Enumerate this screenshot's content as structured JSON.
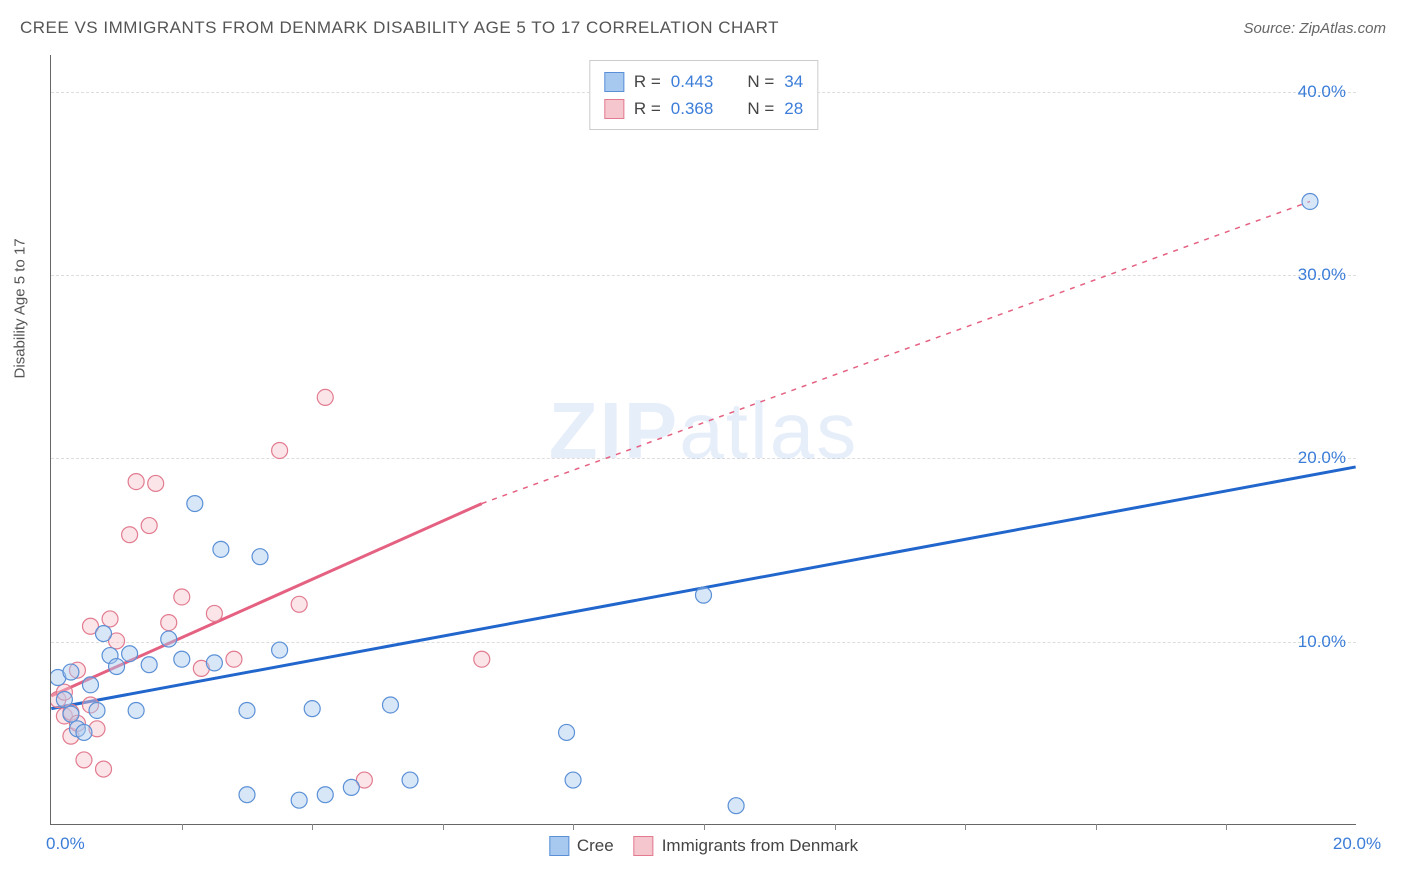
{
  "title": "CREE VS IMMIGRANTS FROM DENMARK DISABILITY AGE 5 TO 17 CORRELATION CHART",
  "source_label": "Source: ZipAtlas.com",
  "y_axis_title": "Disability Age 5 to 17",
  "watermark": {
    "bold": "ZIP",
    "light": "atlas"
  },
  "chart": {
    "type": "scatter",
    "xlim": [
      0,
      20
    ],
    "ylim": [
      0,
      42
    ],
    "x_ticks": [
      0,
      20
    ],
    "y_ticks": [
      10,
      20,
      30,
      40
    ],
    "x_minor_ticks": [
      2,
      4,
      6,
      8,
      10,
      12,
      14,
      16,
      18
    ],
    "grid_color": "#dddddd",
    "background_color": "#ffffff",
    "axis_color": "#666666",
    "tick_label_color": "#3b7dd8",
    "marker_radius": 8,
    "marker_opacity": 0.45,
    "series": [
      {
        "name": "Cree",
        "fill_color": "#a8c9ef",
        "stroke_color": "#5b90d6",
        "line_color": "#2166cc",
        "r": "0.443",
        "n": "34",
        "points": [
          [
            0.1,
            8.0
          ],
          [
            0.2,
            6.8
          ],
          [
            0.3,
            6.0
          ],
          [
            0.3,
            8.3
          ],
          [
            0.4,
            5.2
          ],
          [
            0.5,
            5.0
          ],
          [
            0.6,
            7.6
          ],
          [
            0.7,
            6.2
          ],
          [
            0.8,
            10.4
          ],
          [
            0.9,
            9.2
          ],
          [
            1.0,
            8.6
          ],
          [
            1.2,
            9.3
          ],
          [
            1.3,
            6.2
          ],
          [
            1.5,
            8.7
          ],
          [
            1.8,
            10.1
          ],
          [
            2.0,
            9.0
          ],
          [
            2.2,
            17.5
          ],
          [
            2.5,
            8.8
          ],
          [
            2.6,
            15.0
          ],
          [
            3.0,
            6.2
          ],
          [
            3.0,
            1.6
          ],
          [
            3.2,
            14.6
          ],
          [
            3.5,
            9.5
          ],
          [
            3.8,
            1.3
          ],
          [
            4.0,
            6.3
          ],
          [
            4.2,
            1.6
          ],
          [
            4.6,
            2.0
          ],
          [
            5.2,
            6.5
          ],
          [
            5.5,
            2.4
          ],
          [
            7.9,
            5.0
          ],
          [
            8.0,
            2.4
          ],
          [
            10.0,
            12.5
          ],
          [
            10.5,
            1.0
          ],
          [
            19.3,
            34.0
          ]
        ],
        "trend": {
          "x1": 0,
          "y1": 6.3,
          "x2": 20,
          "y2": 19.5,
          "style": "solid",
          "width": 3
        }
      },
      {
        "name": "Immigrants from Denmark",
        "fill_color": "#f6c6cf",
        "stroke_color": "#e27b8f",
        "line_color": "#e56182",
        "r": "0.368",
        "n": "28",
        "points": [
          [
            0.1,
            6.8
          ],
          [
            0.2,
            5.9
          ],
          [
            0.2,
            7.2
          ],
          [
            0.3,
            4.8
          ],
          [
            0.3,
            6.1
          ],
          [
            0.4,
            5.5
          ],
          [
            0.4,
            8.4
          ],
          [
            0.5,
            3.5
          ],
          [
            0.6,
            6.5
          ],
          [
            0.6,
            10.8
          ],
          [
            0.7,
            5.2
          ],
          [
            0.8,
            3.0
          ],
          [
            0.9,
            11.2
          ],
          [
            1.0,
            10.0
          ],
          [
            1.2,
            15.8
          ],
          [
            1.3,
            18.7
          ],
          [
            1.5,
            16.3
          ],
          [
            1.6,
            18.6
          ],
          [
            1.8,
            11.0
          ],
          [
            2.0,
            12.4
          ],
          [
            2.3,
            8.5
          ],
          [
            2.5,
            11.5
          ],
          [
            2.8,
            9.0
          ],
          [
            3.5,
            20.4
          ],
          [
            3.8,
            12.0
          ],
          [
            4.2,
            23.3
          ],
          [
            4.8,
            2.4
          ],
          [
            6.6,
            9.0
          ]
        ],
        "trend_solid": {
          "x1": 0,
          "y1": 7.0,
          "x2": 6.6,
          "y2": 17.5,
          "width": 3
        },
        "trend_dashed": {
          "x1": 6.6,
          "y1": 17.5,
          "x2": 19.3,
          "y2": 34.0,
          "width": 1.5
        }
      }
    ]
  },
  "legend_top": {
    "rows": [
      {
        "swatch_fill": "#a8c9ef",
        "swatch_border": "#5b90d6",
        "r": "0.443",
        "n": "34"
      },
      {
        "swatch_fill": "#f6c6cf",
        "swatch_border": "#e27b8f",
        "r": "0.368",
        "n": "28"
      }
    ],
    "r_prefix": "R =",
    "n_prefix": "N ="
  },
  "legend_bottom": [
    {
      "swatch_fill": "#a8c9ef",
      "swatch_border": "#5b90d6",
      "label": "Cree"
    },
    {
      "swatch_fill": "#f6c6cf",
      "swatch_border": "#e27b8f",
      "label": "Immigrants from Denmark"
    }
  ]
}
